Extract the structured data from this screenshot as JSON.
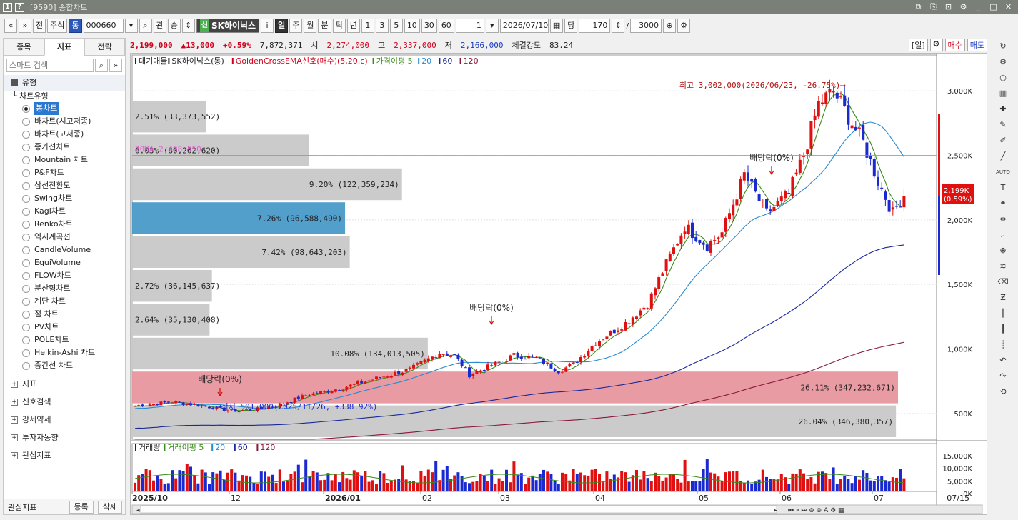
{
  "window": {
    "title": "[9590] 종합차트"
  },
  "toolbar": {
    "nav_back": "«",
    "nav_down": "»",
    "prev": "전",
    "market": "주식",
    "market_type": "통",
    "code": "000660",
    "search_icon": "⌕",
    "gwan": "관",
    "seung": "승",
    "sin": "신",
    "stock_name": "SK하이닉스",
    "info": "i",
    "periods": [
      "일",
      "주",
      "월",
      "분",
      "틱",
      "년"
    ],
    "period_active": "일",
    "intervals": [
      "1",
      "3",
      "5",
      "10",
      "30",
      "60"
    ],
    "count1": "1",
    "date": "2026/07/10",
    "dang": "당",
    "bars": "170",
    "total": "3000"
  },
  "left_panel": {
    "tabs": [
      "종목",
      "지표",
      "전략"
    ],
    "active_tab": "지표",
    "search_placeholder": "스마트 검색",
    "section_type": "유형",
    "chart_type_header": "차트유형",
    "chart_types": [
      "봉차트",
      "바차트(시고저종)",
      "바차트(고저종)",
      "종가선차트",
      "Mountain 차트",
      "P&F차트",
      "삼선전환도",
      "Swing차트",
      "Kagi차트",
      "Renko차트",
      "역시계곡선",
      "CandleVolume",
      "EquiVolume",
      "FLOW차트",
      "분산형차트",
      "계단 차트",
      "점 차트",
      "PV차트",
      "POLE차트",
      "Heikin-Ashi 차트",
      "중간선 차트"
    ],
    "selected_chart_type": "봉차트",
    "sections": [
      "지표",
      "신호검색",
      "강세약세",
      "투자자동향",
      "관심지표"
    ],
    "bottom": {
      "label": "관심지표",
      "register": "등록",
      "delete": "삭제"
    }
  },
  "price_bar": {
    "price": "2,199,000",
    "change": "▲13,000",
    "pct": "+0.59%",
    "volume": "7,872,371",
    "open_lbl": "시",
    "open": "2,274,000",
    "high_lbl": "고",
    "high": "2,337,000",
    "low_lbl": "저",
    "low": "2,166,000",
    "strength_lbl": "체결강도",
    "strength": "83.24",
    "period_btn": "[일]",
    "buy": "매수",
    "sell": "매도"
  },
  "chart_data": [
    {
      "type": "candlestick",
      "legend": [
        "대기매물",
        "SK하이닉스(통)",
        "GoldenCrossEMA신호(매수)(5,20,c)",
        "가격이평 5",
        "20",
        "60",
        "120"
      ],
      "legend_colors": [
        "#222222",
        "#222222",
        "#d0021b",
        "#3a8a1a",
        "#2a8ad0",
        "#1a2a9a",
        "#8a1a3a"
      ],
      "y_ticks": [
        500000,
        1000000,
        1500000,
        2000000,
        2500000,
        3000000
      ],
      "y_tick_labels": [
        "500K",
        "1,000K",
        "1,500K",
        "2,000K",
        "2,500K",
        "3,000K"
      ],
      "x_labels": [
        "2025/10",
        "12",
        "2026/01",
        "02",
        "03",
        "04",
        "05",
        "06",
        "07"
      ],
      "last_x_label": "07/15",
      "current_price_label": "2,199K",
      "current_pct_label": "(0.59%)",
      "ma20_line_label": "20MA 2,498,550",
      "ma20_line_value": 2498550,
      "high_annotation": "최고 3,002,000(2026/06/23, -26.75%)⟶",
      "low_annotation": "⟵최저 501,000(2025/11/26, +338.92%)",
      "dividend_label": "배당락(0%)",
      "volume_profile": [
        {
          "label": "2.51% (33,373,552)",
          "pct": 2.51
        },
        {
          "label": "6.03% (80,262,620)",
          "pct": 6.03
        },
        {
          "label": "9.20% (122,359,234)",
          "pct": 9.2
        },
        {
          "label": "7.26% (96,588,490)",
          "pct": 7.26
        },
        {
          "label": "7.42% (98,643,203)",
          "pct": 7.42
        },
        {
          "label": "2.72% (36,145,637)",
          "pct": 2.72
        },
        {
          "label": "2.64% (35,130,408)",
          "pct": 2.64
        },
        {
          "label": "10.08% (134,013,505)",
          "pct": 10.08
        },
        {
          "label": "26.11% (347,232,671)",
          "pct": 26.11
        },
        {
          "label": "26.04% (346,380,357)",
          "pct": 26.04
        }
      ],
      "waypoints": [
        [
          0,
          560000
        ],
        [
          10,
          590000
        ],
        [
          18,
          560000
        ],
        [
          26,
          520000
        ],
        [
          32,
          530000
        ],
        [
          38,
          560000
        ],
        [
          46,
          640000
        ],
        [
          56,
          700000
        ],
        [
          66,
          780000
        ],
        [
          74,
          840000
        ],
        [
          82,
          970000
        ],
        [
          86,
          950000
        ],
        [
          90,
          800000
        ],
        [
          96,
          870000
        ],
        [
          102,
          950000
        ],
        [
          108,
          930000
        ],
        [
          114,
          830000
        ],
        [
          118,
          880000
        ],
        [
          124,
          1050000
        ],
        [
          132,
          1200000
        ],
        [
          138,
          1350000
        ],
        [
          142,
          1600000
        ],
        [
          148,
          1950000
        ],
        [
          154,
          1800000
        ],
        [
          158,
          1900000
        ],
        [
          164,
          2350000
        ],
        [
          170,
          2050000
        ],
        [
          176,
          2200000
        ],
        [
          180,
          2500000
        ],
        [
          184,
          2900000
        ],
        [
          188,
          3000000
        ],
        [
          192,
          2800000
        ],
        [
          196,
          2600000
        ],
        [
          200,
          2300000
        ],
        [
          204,
          2050000
        ],
        [
          207,
          2199000
        ]
      ]
    },
    {
      "type": "volume",
      "legend": [
        "거래량",
        "거래이평 5",
        "20",
        "60",
        "120"
      ],
      "legend_colors": [
        "#222222",
        "#3a8a1a",
        "#2a8ad0",
        "#1a2a9a",
        "#8a1a3a"
      ],
      "y_tick_labels": [
        "15,000K",
        "10,000K",
        "5,000K",
        "0K"
      ],
      "ylim": [
        0,
        15000000
      ]
    }
  ]
}
